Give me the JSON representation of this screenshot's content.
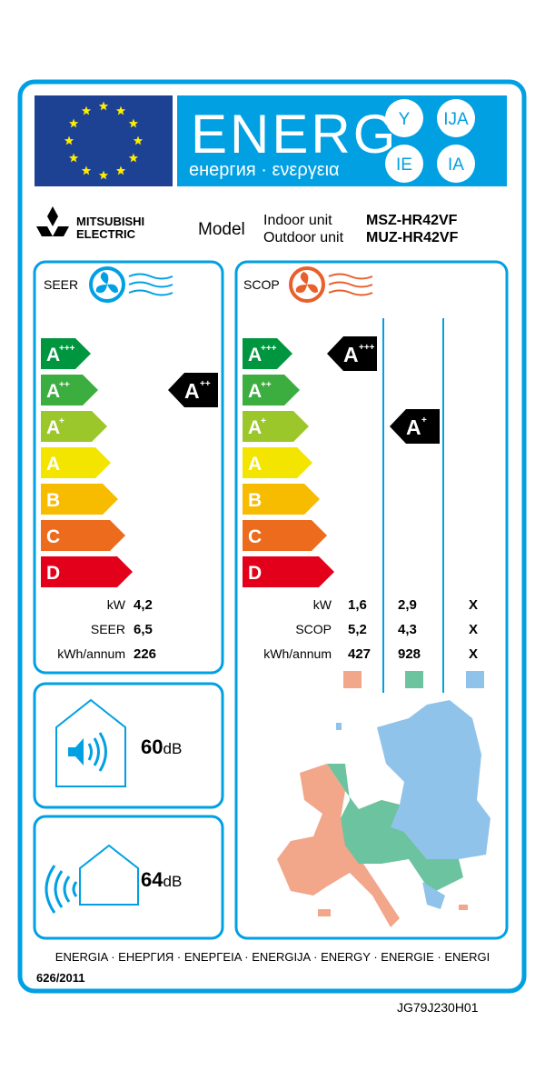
{
  "header": {
    "title": "ENERG",
    "subtitle": "енергия · ενεργεια",
    "languages": [
      "Y",
      "IJA",
      "IE",
      "IA"
    ]
  },
  "brand": {
    "line1": "MITSUBISHI",
    "line2": "ELECTRIC"
  },
  "model": {
    "label": "Model",
    "rows": [
      {
        "unit": "Indoor unit",
        "name": "MSZ-HR42VF"
      },
      {
        "unit": "Outdoor unit",
        "name": "MUZ-HR42VF"
      }
    ]
  },
  "scale": [
    {
      "letter": "A",
      "sup": "+++",
      "color": "#00963f"
    },
    {
      "letter": "A",
      "sup": "++",
      "color": "#3cad3f"
    },
    {
      "letter": "A",
      "sup": "+",
      "color": "#9cc72b"
    },
    {
      "letter": "A",
      "sup": "",
      "color": "#f3e500"
    },
    {
      "letter": "B",
      "sup": "",
      "color": "#f7bb00"
    },
    {
      "letter": "C",
      "sup": "",
      "color": "#ec6b1c"
    },
    {
      "letter": "D",
      "sup": "",
      "color": "#e2001a"
    }
  ],
  "cooling": {
    "label": "SEER",
    "rating": {
      "letter": "A",
      "sup": "++"
    },
    "rows": [
      {
        "label": "kW",
        "value": "4,2"
      },
      {
        "label": "SEER",
        "value": "6,5"
      },
      {
        "label": "kWh/annum",
        "value": "226"
      }
    ]
  },
  "heating": {
    "label": "SCOP",
    "ratings": [
      {
        "letter": "A",
        "sup": "+++"
      },
      {
        "letter": "A",
        "sup": "+"
      }
    ],
    "rows": [
      {
        "label": "kW",
        "values": [
          "1,6",
          "2,9",
          "X"
        ]
      },
      {
        "label": "SCOP",
        "values": [
          "5,2",
          "4,3",
          "X"
        ]
      },
      {
        "label": "kWh/annum",
        "values": [
          "427",
          "928",
          "X"
        ]
      }
    ],
    "zone_colors": [
      "#f2a68a",
      "#6cc39f",
      "#8fc3ea"
    ]
  },
  "noise": [
    {
      "value": "60",
      "unit": "dB"
    },
    {
      "value": "64",
      "unit": "dB"
    }
  ],
  "footer": {
    "languages": "ENERGIA · ЕНЕРГИЯ · ΕΝΕΡΓΕΙΑ · ENERGIJA · ENERGY · ENERGIE · ENERGI",
    "regulation": "626/2011",
    "code": "JG79J230H01"
  }
}
